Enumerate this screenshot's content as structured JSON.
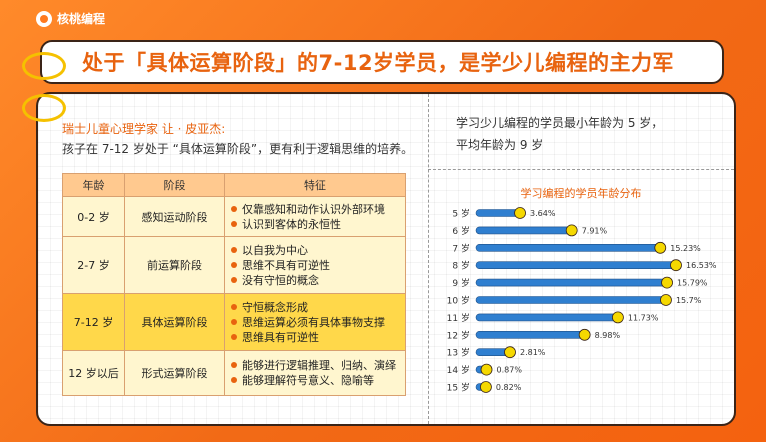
{
  "brand": "核桃编程",
  "title": "处于「具体运算阶段」的7-12岁学员，是学少儿编程的主力军",
  "quote": {
    "author": "瑞士儿童心理学家 让 · 皮亚杰:",
    "text": "孩子在 7-12 岁处于 “具体运算阶段”，更有利于逻辑思维的培养。"
  },
  "table": {
    "headers": [
      "年龄",
      "阶段",
      "特征"
    ],
    "rows": [
      {
        "age": "0-2 岁",
        "stage": "感知运动阶段",
        "features": [
          "仅靠感知和动作认识外部环境",
          "认识到客体的永恒性"
        ]
      },
      {
        "age": "2-7 岁",
        "stage": "前运算阶段",
        "features": [
          "以自我为中心",
          "思维不具有可逆性",
          "没有守恒的概念"
        ]
      },
      {
        "age": "7-12 岁",
        "stage": "具体运算阶段",
        "features": [
          "守恒概念形成",
          "思维运算必须有具体事物支撑",
          "思维具有可逆性"
        ]
      },
      {
        "age": "12 岁以后",
        "stage": "形式运算阶段",
        "features": [
          "能够进行逻辑推理、归纳、演绎",
          "能够理解符号意义、隐喻等"
        ]
      }
    ]
  },
  "stat": {
    "line1": "学习少儿编程的学员最小年龄为 5 岁，",
    "line2": "平均年龄为 9 岁"
  },
  "chart_data": {
    "type": "bar",
    "orientation": "horizontal",
    "title": "学习编程的学员年龄分布",
    "categories": [
      "5 岁",
      "6 岁",
      "7 岁",
      "8 岁",
      "9 岁",
      "10 岁",
      "11 岁",
      "12 岁",
      "13 岁",
      "14 岁",
      "15 岁"
    ],
    "values": [
      3.64,
      7.91,
      15.23,
      16.53,
      15.79,
      15.7,
      11.73,
      8.98,
      2.81,
      0.87,
      0.82
    ],
    "labels": [
      "3.64%",
      "7.91%",
      "15.23%",
      "16.53%",
      "15.79%",
      "15.7%",
      "11.73%",
      "8.98%",
      "2.81%",
      "0.87%",
      "0.82%"
    ],
    "bar_color": "#2f7fd0",
    "marker_color": "#f5d800"
  }
}
